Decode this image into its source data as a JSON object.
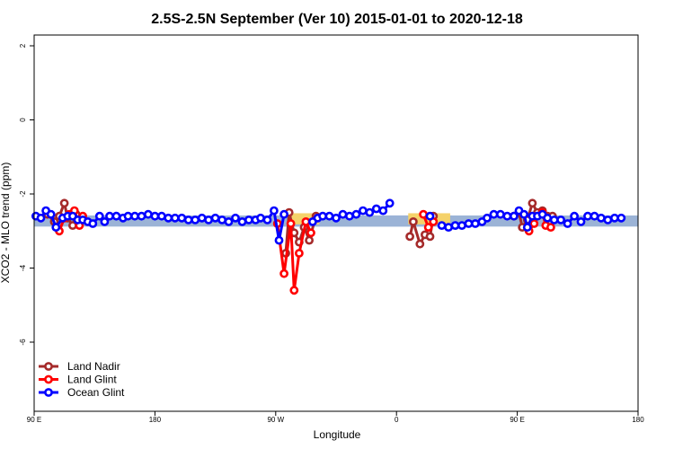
{
  "chart_data": {
    "type": "line",
    "title": "2.5S-2.5N September (Ver 10)   2015-01-01 to 2020-12-18",
    "xlabel": "Longitude",
    "ylabel": "XCO2 - MLO trend (ppm)",
    "xlim": [
      -90,
      270
    ],
    "ylim": [
      -8,
      2.2
    ],
    "x_ticks": [
      {
        "value": -90,
        "label": "90 E"
      },
      {
        "value": -18,
        "label": "180"
      },
      {
        "value": 54,
        "label": "90 W"
      },
      {
        "value": 126,
        "label": "0"
      },
      {
        "value": 198,
        "label": "90 E"
      },
      {
        "value": 270,
        "label": "180"
      }
    ],
    "y_ticks": [
      {
        "value": 2,
        "label": "2"
      },
      {
        "value": 0,
        "label": "0"
      },
      {
        "value": -2,
        "label": "-2"
      },
      {
        "value": -4,
        "label": "-4"
      },
      {
        "value": -6,
        "label": "-6"
      }
    ],
    "bands": [
      {
        "color": "#9bb3d6",
        "y0": -2.58,
        "y1": -2.88,
        "segments": [
          [
            -90,
            274
          ],
          [
            36,
            159
          ]
        ]
      },
      {
        "color": "#f5d26a",
        "y0": -2.52,
        "y1": -2.82,
        "segments": [
          [
            63,
            80
          ],
          [
            133,
            158
          ]
        ]
      }
    ],
    "legend": {
      "position": "bottom-left"
    },
    "series": [
      {
        "name": "Land Nadir",
        "color": "#a52a2a",
        "segments": [
          [
            [
              -82,
              -2.55
            ],
            [
              -78,
              -2.75
            ],
            [
              -75,
              -2.6
            ],
            [
              -72,
              -2.25
            ],
            [
              -70,
              -2.65
            ],
            [
              -67,
              -2.85
            ],
            [
              -65,
              -2.55
            ],
            [
              -62,
              -2.7
            ]
          ],
          [
            [
              60,
              -3.6
            ],
            [
              62,
              -2.5
            ],
            [
              65,
              -3.05
            ],
            [
              68,
              -3.3
            ],
            [
              71,
              -2.9
            ],
            [
              74,
              -3.25
            ],
            [
              78,
              -2.6
            ]
          ],
          [
            [
              134,
              -3.15
            ],
            [
              136,
              -2.75
            ],
            [
              140,
              -3.35
            ],
            [
              143,
              -3.1
            ],
            [
              146,
              -3.15
            ],
            [
              148,
              -2.6
            ]
          ],
          [
            [
              196,
              -2.6
            ],
            [
              199,
              -2.5
            ],
            [
              201,
              -2.9
            ],
            [
              204,
              -2.7
            ],
            [
              207,
              -2.25
            ],
            [
              210,
              -2.5
            ],
            [
              213,
              -2.45
            ],
            [
              216,
              -2.6
            ],
            [
              219,
              -2.6
            ]
          ]
        ]
      },
      {
        "name": "Land Glint",
        "color": "#ff0000",
        "segments": [
          [
            [
              -75,
              -3.0
            ],
            [
              -72,
              -2.65
            ],
            [
              -69,
              -2.55
            ],
            [
              -66,
              -2.45
            ],
            [
              -63,
              -2.85
            ],
            [
              -61,
              -2.6
            ]
          ],
          [
            [
              55,
              -2.8
            ],
            [
              59,
              -4.15
            ],
            [
              63,
              -2.8
            ],
            [
              65,
              -4.6
            ],
            [
              68,
              -3.6
            ],
            [
              72,
              -2.75
            ],
            [
              75,
              -3.05
            ]
          ],
          [
            [
              142,
              -2.55
            ],
            [
              145,
              -2.9
            ],
            [
              148,
              -2.75
            ]
          ],
          [
            [
              205,
              -3.0
            ],
            [
              208,
              -2.8
            ],
            [
              210,
              -2.6
            ],
            [
              213,
              -2.5
            ],
            [
              215,
              -2.85
            ],
            [
              218,
              -2.9
            ]
          ]
        ]
      },
      {
        "name": "Ocean Glint",
        "color": "#0000ff",
        "segments": [
          [
            [
              -89,
              -2.6
            ],
            [
              -86,
              -2.65
            ],
            [
              -83,
              -2.45
            ],
            [
              -80,
              -2.55
            ],
            [
              -77,
              -2.9
            ],
            [
              -73,
              -2.65
            ],
            [
              -70,
              -2.6
            ],
            [
              -67,
              -2.6
            ],
            [
              -64,
              -2.7
            ],
            [
              -61,
              -2.7
            ],
            [
              -58,
              -2.75
            ],
            [
              -55,
              -2.8
            ],
            [
              -51,
              -2.6
            ],
            [
              -48,
              -2.75
            ],
            [
              -45,
              -2.6
            ],
            [
              -41,
              -2.6
            ],
            [
              -37,
              -2.65
            ],
            [
              -34,
              -2.6
            ],
            [
              -30,
              -2.6
            ],
            [
              -26,
              -2.6
            ],
            [
              -22,
              -2.55
            ],
            [
              -18,
              -2.6
            ],
            [
              -14,
              -2.6
            ],
            [
              -10,
              -2.65
            ],
            [
              -6,
              -2.65
            ],
            [
              -2,
              -2.65
            ],
            [
              2,
              -2.7
            ],
            [
              6,
              -2.7
            ],
            [
              10,
              -2.65
            ],
            [
              14,
              -2.7
            ],
            [
              18,
              -2.65
            ],
            [
              22,
              -2.7
            ],
            [
              26,
              -2.75
            ],
            [
              30,
              -2.65
            ],
            [
              34,
              -2.75
            ],
            [
              38,
              -2.7
            ],
            [
              42,
              -2.7
            ],
            [
              45,
              -2.65
            ],
            [
              49,
              -2.7
            ],
            [
              53,
              -2.45
            ],
            [
              56,
              -3.25
            ],
            [
              59,
              -2.55
            ]
          ],
          [
            [
              76,
              -2.75
            ],
            [
              79,
              -2.65
            ],
            [
              82,
              -2.6
            ],
            [
              86,
              -2.6
            ],
            [
              90,
              -2.65
            ],
            [
              94,
              -2.55
            ],
            [
              98,
              -2.6
            ],
            [
              102,
              -2.55
            ],
            [
              106,
              -2.45
            ],
            [
              110,
              -2.5
            ],
            [
              114,
              -2.4
            ],
            [
              118,
              -2.45
            ],
            [
              122,
              -2.25
            ]
          ],
          [
            [
              146,
              -2.6
            ]
          ],
          [
            [
              153,
              -2.85
            ],
            [
              157,
              -2.9
            ],
            [
              161,
              -2.85
            ],
            [
              165,
              -2.85
            ],
            [
              169,
              -2.8
            ],
            [
              173,
              -2.8
            ],
            [
              177,
              -2.75
            ],
            [
              180,
              -2.65
            ],
            [
              184,
              -2.55
            ],
            [
              188,
              -2.55
            ],
            [
              192,
              -2.6
            ],
            [
              196,
              -2.6
            ],
            [
              199,
              -2.45
            ],
            [
              202,
              -2.55
            ],
            [
              204,
              -2.9
            ],
            [
              207,
              -2.6
            ],
            [
              210,
              -2.6
            ],
            [
              213,
              -2.55
            ],
            [
              216,
              -2.65
            ],
            [
              220,
              -2.7
            ],
            [
              224,
              -2.7
            ],
            [
              228,
              -2.8
            ],
            [
              232,
              -2.6
            ],
            [
              236,
              -2.75
            ],
            [
              240,
              -2.6
            ],
            [
              244,
              -2.6
            ],
            [
              248,
              -2.65
            ],
            [
              252,
              -2.7
            ],
            [
              256,
              -2.65
            ],
            [
              260,
              -2.65
            ]
          ]
        ]
      }
    ]
  }
}
